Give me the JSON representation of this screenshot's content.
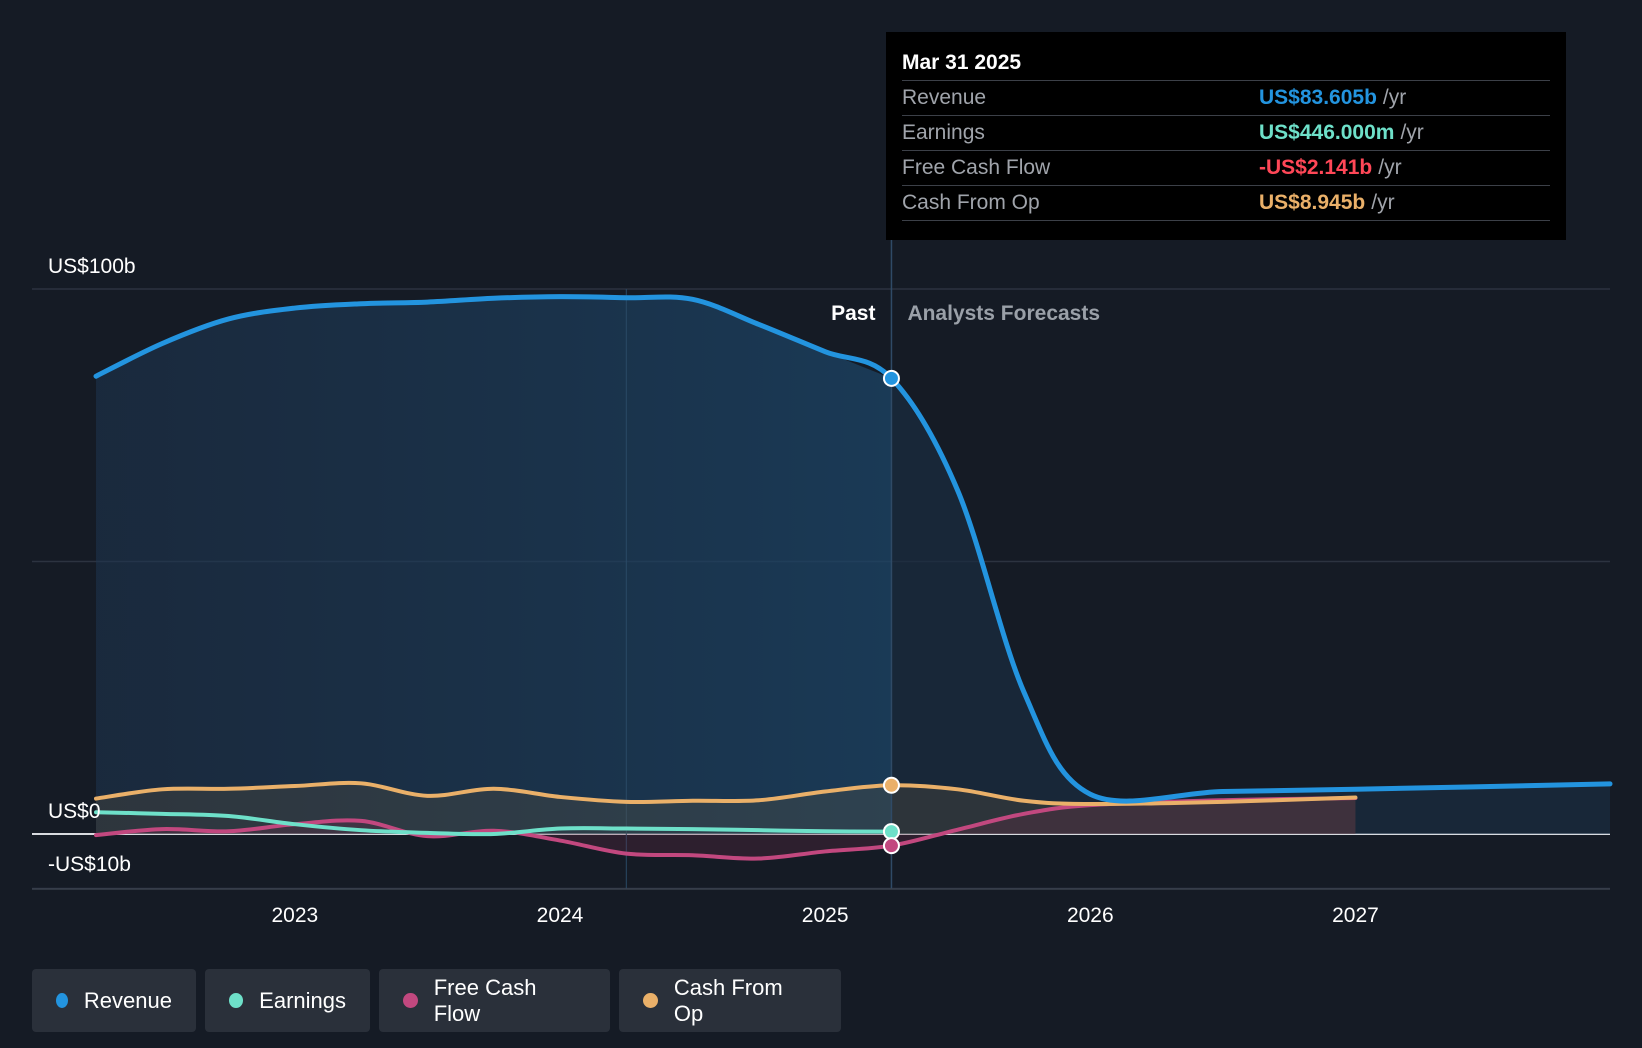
{
  "colors": {
    "background": "#151b25",
    "revenue": "#2394df",
    "earnings": "#6ee0c9",
    "free_cash_flow": "#c2487f",
    "cash_from_op": "#eab069",
    "negative": "#ff4757",
    "grid": "#2c3340"
  },
  "tooltip": {
    "date": "Mar 31 2025",
    "unit": "/yr",
    "rows": [
      {
        "label": "Revenue",
        "value": "US$83.605b",
        "color": "#2394df"
      },
      {
        "label": "Earnings",
        "value": "US$446.000m",
        "color": "#6ee0c9"
      },
      {
        "label": "Free Cash Flow",
        "value": "-US$2.141b",
        "color": "#ff4757"
      },
      {
        "label": "Cash From Op",
        "value": "US$8.945b",
        "color": "#eab069"
      }
    ]
  },
  "legend": [
    {
      "label": "Revenue",
      "color": "#2394df"
    },
    {
      "label": "Earnings",
      "color": "#6ee0c9"
    },
    {
      "label": "Free Cash Flow",
      "color": "#c2487f"
    },
    {
      "label": "Cash From Op",
      "color": "#eab069"
    }
  ],
  "chart_data": {
    "type": "line",
    "divider_x": 2025.25,
    "past_label": "Past",
    "forecast_label": "Analysts Forecasts",
    "xlim": [
      2022.25,
      2027.96
    ],
    "ylim": [
      -10,
      100
    ],
    "y_tick_labels": [
      {
        "value": 100,
        "label": "US$100b"
      },
      {
        "value": 0,
        "label": "US$0"
      },
      {
        "value": -10,
        "label": "-US$10b"
      }
    ],
    "gridlines_y": [
      100,
      50,
      0,
      -10
    ],
    "x_ticks": [
      2023,
      2024,
      2025,
      2026,
      2027
    ],
    "series": [
      {
        "name": "Revenue",
        "key": "revenue",
        "x": [
          2022.25,
          2022.5,
          2022.75,
          2023.0,
          2023.25,
          2023.5,
          2023.75,
          2024.0,
          2024.25,
          2024.5,
          2024.75,
          2025.0,
          2025.25,
          2025.5,
          2025.75,
          2026.0,
          2026.5,
          2027.0,
          2027.96
        ],
        "y": [
          84,
          90,
          94.5,
          96.5,
          97.3,
          97.6,
          98.3,
          98.6,
          98.4,
          98.1,
          93.5,
          88.5,
          83.6,
          63,
          26,
          7.3,
          7.8,
          8.2,
          9.2
        ]
      },
      {
        "name": "Earnings",
        "key": "earnings",
        "x": [
          2022.25,
          2022.5,
          2022.75,
          2023.0,
          2023.25,
          2023.5,
          2023.75,
          2024.0,
          2024.25,
          2024.5,
          2024.75,
          2025.0,
          2025.25
        ],
        "y": [
          4.0,
          3.7,
          3.3,
          1.8,
          0.7,
          0.2,
          0.0,
          1.0,
          1.0,
          0.9,
          0.7,
          0.5,
          0.446
        ]
      },
      {
        "name": "Free Cash Flow",
        "key": "free_cash_flow",
        "x": [
          2022.25,
          2022.5,
          2022.75,
          2023.0,
          2023.25,
          2023.5,
          2023.75,
          2024.0,
          2024.25,
          2024.5,
          2024.75,
          2025.0,
          2025.25,
          2025.5,
          2025.75,
          2026.0,
          2026.5,
          2027.0
        ],
        "y": [
          -0.2,
          0.9,
          0.5,
          1.8,
          2.4,
          -0.4,
          0.6,
          -1.2,
          -3.6,
          -3.9,
          -4.5,
          -3.2,
          -2.141,
          0.8,
          3.7,
          5.3,
          6.2,
          6.6
        ]
      },
      {
        "name": "Cash From Op",
        "key": "cash_from_op",
        "x": [
          2022.25,
          2022.5,
          2022.75,
          2023.0,
          2023.25,
          2023.5,
          2023.75,
          2024.0,
          2024.25,
          2024.5,
          2024.75,
          2025.0,
          2025.25,
          2025.5,
          2025.75,
          2026.0,
          2026.5,
          2027.0
        ],
        "y": [
          6.5,
          8.2,
          8.3,
          8.8,
          9.3,
          7.0,
          8.3,
          6.8,
          5.9,
          6.1,
          6.2,
          7.8,
          8.945,
          8.2,
          6.1,
          5.5,
          5.9,
          6.7
        ]
      }
    ]
  }
}
